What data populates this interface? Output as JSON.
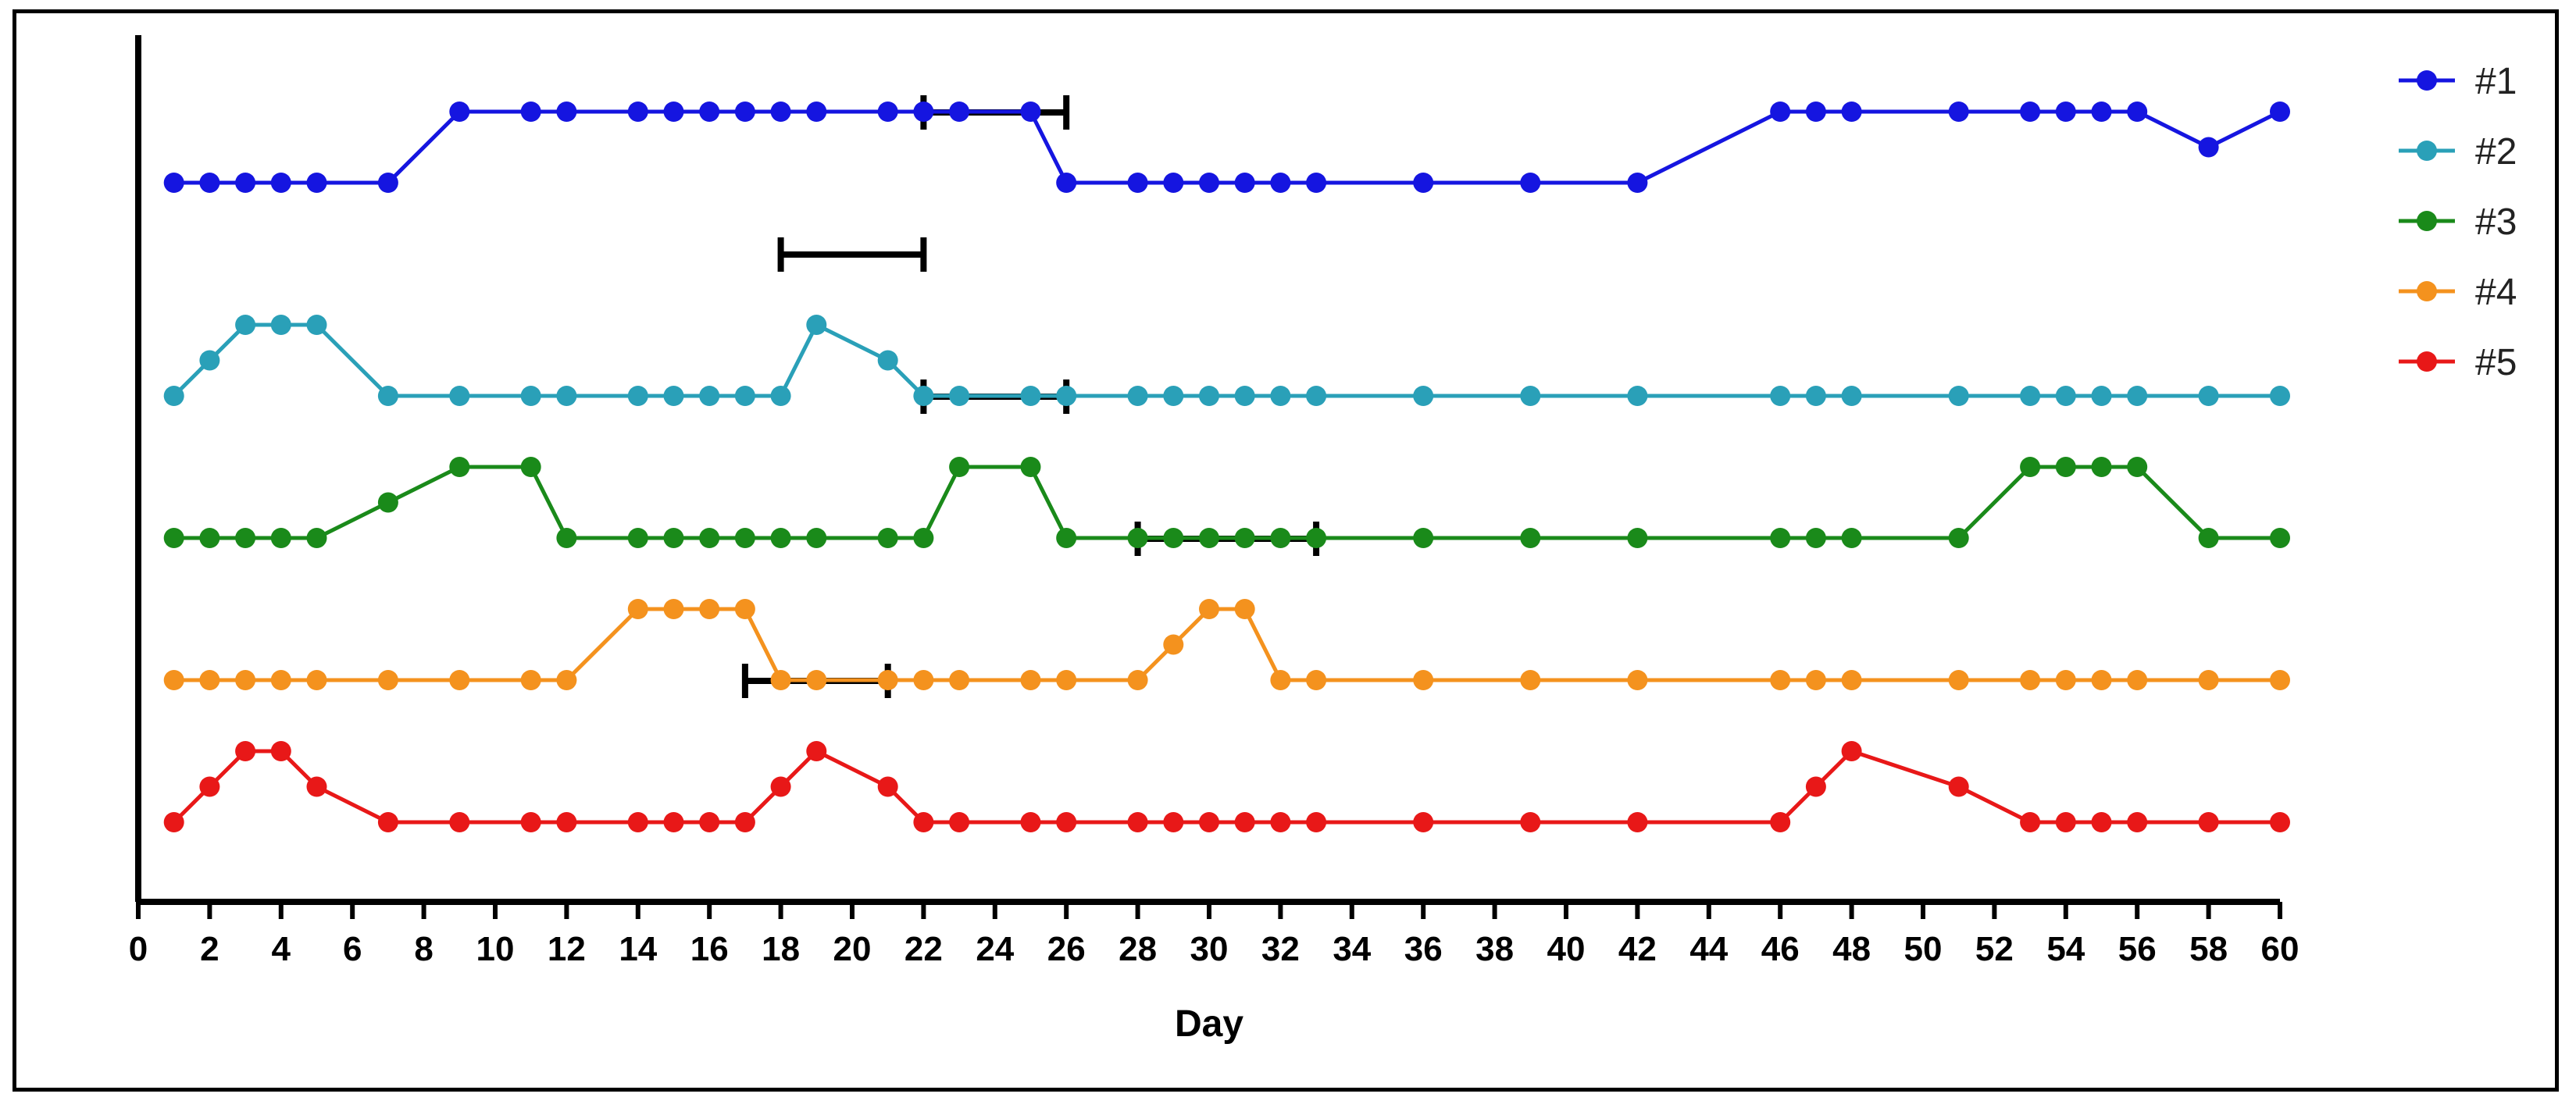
{
  "chart_data": {
    "type": "line",
    "title": "",
    "xlabel": "Day",
    "ylabel": "",
    "xlim": [
      0,
      60
    ],
    "x_ticks": [
      0,
      2,
      4,
      6,
      8,
      10,
      12,
      14,
      16,
      18,
      20,
      22,
      24,
      26,
      28,
      30,
      32,
      34,
      36,
      38,
      40,
      42,
      44,
      46,
      48,
      50,
      52,
      54,
      56,
      58,
      60
    ],
    "grid": false,
    "legend_position": "top-right",
    "colors": {
      "#1": "#1515e0",
      "#2": "#2aa0b8",
      "#3": "#1a8a1a",
      "#4": "#f4921e",
      "#5": "#e81818",
      "bars": "#000000"
    },
    "series": [
      {
        "name": "#1",
        "x": [
          1,
          2,
          3,
          4,
          5,
          7,
          9,
          11,
          12,
          14,
          15,
          16,
          17,
          18,
          19,
          21,
          22,
          23,
          25,
          26,
          28,
          29,
          30,
          31,
          32,
          33,
          36,
          39,
          42,
          46,
          47,
          48,
          51,
          53,
          54,
          55,
          56,
          58,
          60
        ],
        "values": [
          2,
          2,
          2,
          2,
          2,
          2,
          4,
          4,
          4,
          4,
          4,
          4,
          4,
          4,
          4,
          4,
          4,
          4,
          4,
          2,
          2,
          2,
          2,
          2,
          2,
          2,
          2,
          2,
          2,
          4,
          4,
          4,
          4,
          4,
          4,
          4,
          4,
          3,
          4
        ]
      },
      {
        "name": "#2",
        "x": [
          1,
          2,
          3,
          4,
          5,
          7,
          9,
          11,
          12,
          14,
          15,
          16,
          17,
          18,
          19,
          21,
          22,
          23,
          25,
          26,
          28,
          29,
          30,
          31,
          32,
          33,
          36,
          39,
          42,
          46,
          47,
          48,
          51,
          53,
          54,
          55,
          56,
          58,
          60
        ],
        "values": [
          0,
          1,
          2,
          2,
          2,
          0,
          0,
          0,
          0,
          0,
          0,
          0,
          0,
          0,
          2,
          1,
          0,
          0,
          0,
          0,
          0,
          0,
          0,
          0,
          0,
          0,
          0,
          0,
          0,
          0,
          0,
          0,
          0,
          0,
          0,
          0,
          0,
          0,
          0
        ]
      },
      {
        "name": "#3",
        "x": [
          1,
          2,
          3,
          4,
          5,
          7,
          9,
          11,
          12,
          14,
          15,
          16,
          17,
          18,
          19,
          21,
          22,
          23,
          25,
          26,
          28,
          29,
          30,
          31,
          32,
          33,
          36,
          39,
          42,
          46,
          47,
          48,
          51,
          53,
          54,
          55,
          56,
          58,
          60
        ],
        "values": [
          0,
          0,
          0,
          0,
          0,
          1,
          2,
          2,
          0,
          0,
          0,
          0,
          0,
          0,
          0,
          0,
          0,
          2,
          2,
          0,
          0,
          0,
          0,
          0,
          0,
          0,
          0,
          0,
          0,
          0,
          0,
          0,
          0,
          2,
          2,
          2,
          2,
          0,
          0
        ]
      },
      {
        "name": "#4",
        "x": [
          1,
          2,
          3,
          4,
          5,
          7,
          9,
          11,
          12,
          14,
          15,
          16,
          17,
          18,
          19,
          21,
          22,
          23,
          25,
          26,
          28,
          29,
          30,
          31,
          32,
          33,
          36,
          39,
          42,
          46,
          47,
          48,
          51,
          53,
          54,
          55,
          56,
          58,
          60
        ],
        "values": [
          0,
          0,
          0,
          0,
          0,
          0,
          0,
          0,
          0,
          2,
          2,
          2,
          2,
          0,
          0,
          0,
          0,
          0,
          0,
          0,
          0,
          1,
          2,
          2,
          0,
          0,
          0,
          0,
          0,
          0,
          0,
          0,
          0,
          0,
          0,
          0,
          0,
          0,
          0
        ]
      },
      {
        "name": "#5",
        "x": [
          1,
          2,
          3,
          4,
          5,
          7,
          9,
          11,
          12,
          14,
          15,
          16,
          17,
          18,
          19,
          21,
          22,
          23,
          25,
          26,
          28,
          29,
          30,
          31,
          32,
          33,
          36,
          39,
          42,
          46,
          47,
          48,
          51,
          53,
          54,
          55,
          56,
          58,
          60
        ],
        "values": [
          0,
          1,
          2,
          2,
          1,
          0,
          0,
          0,
          0,
          0,
          0,
          0,
          0,
          1,
          2,
          1,
          0,
          0,
          0,
          0,
          0,
          0,
          0,
          0,
          0,
          0,
          0,
          0,
          0,
          0,
          1,
          2,
          1,
          0,
          0,
          0,
          0,
          0,
          0
        ]
      }
    ],
    "treatment_bars": [
      {
        "series": "#1",
        "start": 22,
        "end": 26
      },
      {
        "series": "#2",
        "start": 18,
        "end": 22
      },
      {
        "series": "#3",
        "start": 22,
        "end": 26
      },
      {
        "series": "#4",
        "start": 28,
        "end": 33
      },
      {
        "series": "#5",
        "start": 17,
        "end": 21
      }
    ]
  }
}
